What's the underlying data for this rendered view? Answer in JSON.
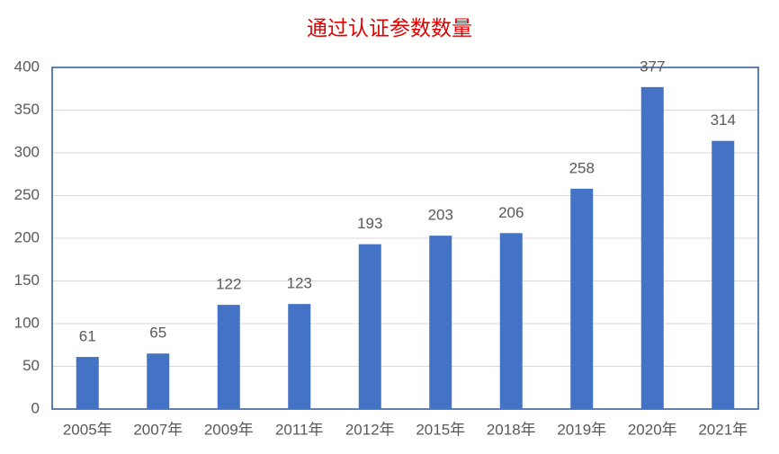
{
  "chart_data": {
    "type": "bar",
    "title": "通过认证参数数量",
    "categories": [
      "2005年",
      "2007年",
      "2009年",
      "2011年",
      "2012年",
      "2015年",
      "2018年",
      "2019年",
      "2020年",
      "2021年"
    ],
    "values": [
      61,
      65,
      122,
      123,
      193,
      203,
      206,
      258,
      377,
      314
    ],
    "color": "#4472c4",
    "ylim": [
      0,
      400
    ],
    "yticks": [
      0,
      50,
      100,
      150,
      200,
      250,
      300,
      350,
      400
    ],
    "grid": true
  }
}
